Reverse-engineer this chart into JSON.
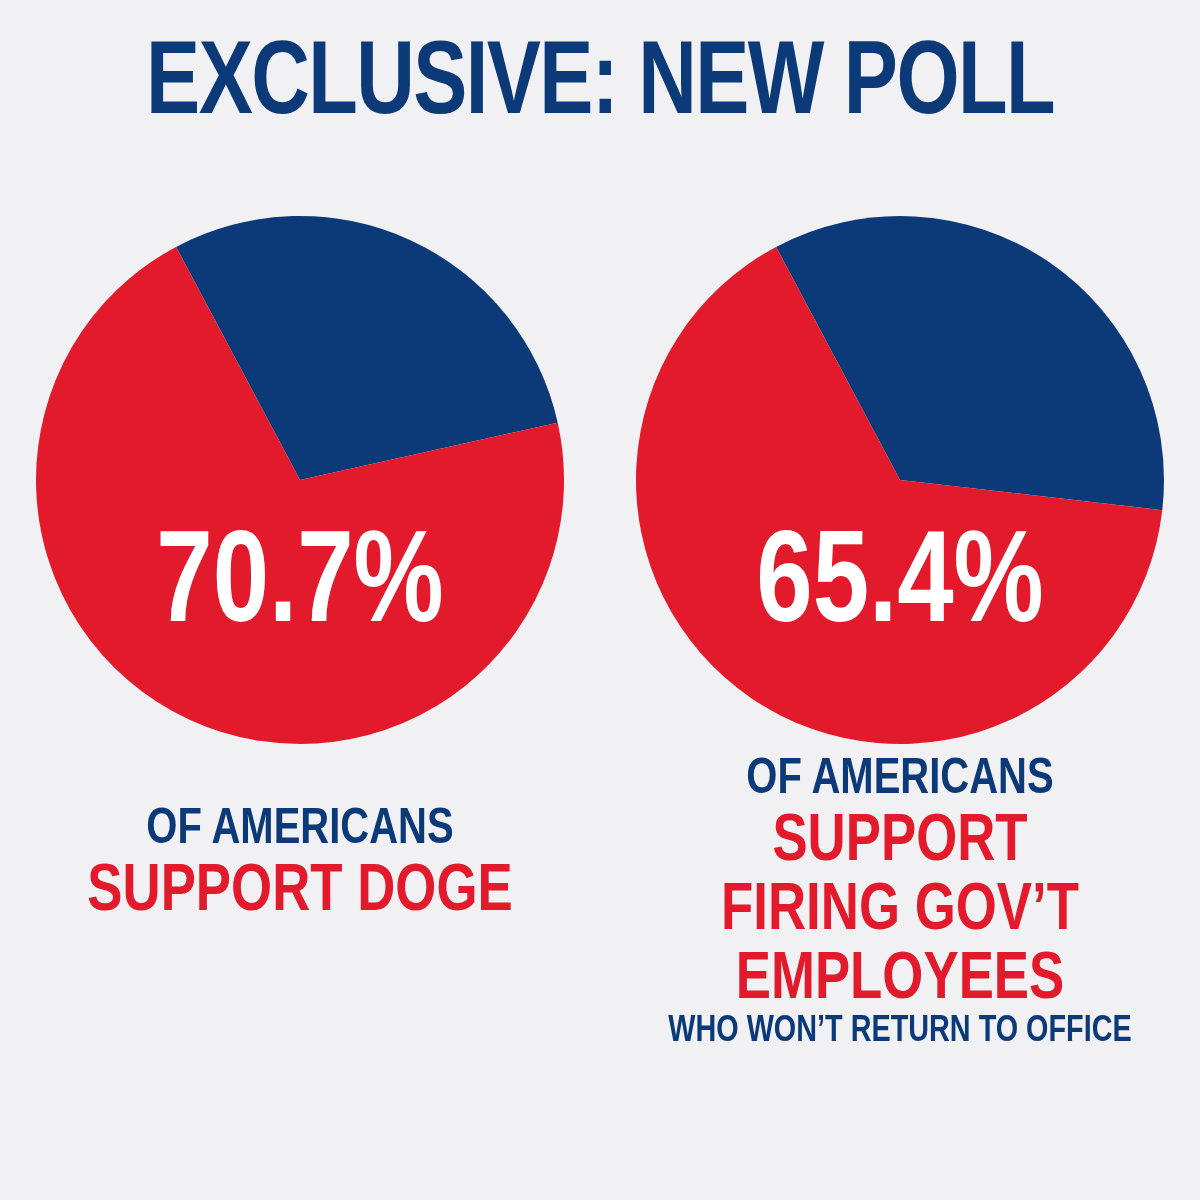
{
  "chart_data": [
    {
      "type": "pie",
      "title": "EXCLUSIVE: NEW POLL",
      "categories": [
        null,
        null
      ],
      "values": [
        29.3,
        70.7
      ],
      "colors": [
        "#0c3a78",
        "#e3192c"
      ],
      "value_labels": [
        null,
        "70.7%"
      ],
      "annotations": [
        "OF AMERICANS",
        "SUPPORT DOGE"
      ]
    },
    {
      "type": "pie",
      "categories": [
        null,
        null
      ],
      "values": [
        34.6,
        65.4
      ],
      "colors": [
        "#0c3a78",
        "#e3192c"
      ],
      "value_labels": [
        null,
        "65.4%"
      ],
      "annotations": [
        "OF AMERICANS",
        "SUPPORT FIRING GOV’T EMPLOYEES",
        "WHO WON’T RETURN TO OFFICE"
      ]
    }
  ]
}
